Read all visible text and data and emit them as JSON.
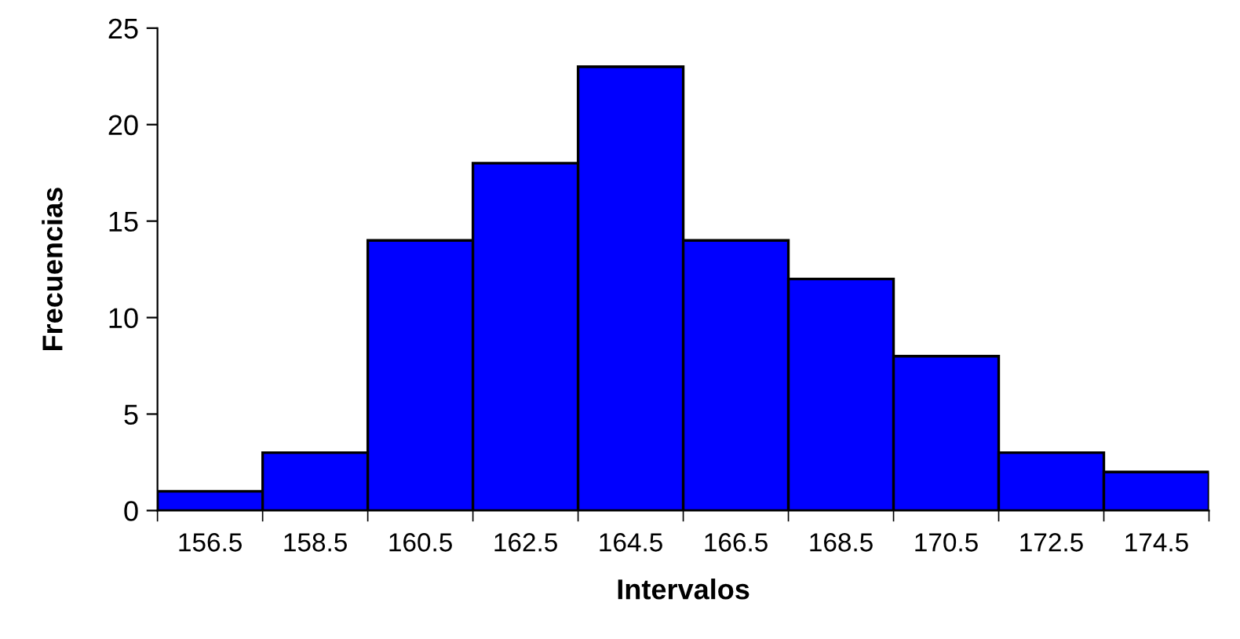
{
  "chart_data": {
    "type": "bar",
    "xlabel": "Intervalos",
    "ylabel": "Frecuencias",
    "categories": [
      "156.5",
      "158.5",
      "160.5",
      "162.5",
      "164.5",
      "166.5",
      "168.5",
      "170.5",
      "172.5",
      "174.5"
    ],
    "values": [
      1,
      3,
      14,
      18,
      23,
      14,
      12,
      8,
      3,
      2
    ],
    "color": "#0000ff",
    "ylim": [
      0,
      25
    ],
    "yticks": [
      0,
      5,
      10,
      15,
      20,
      25
    ],
    "grid": false,
    "legend": false
  }
}
